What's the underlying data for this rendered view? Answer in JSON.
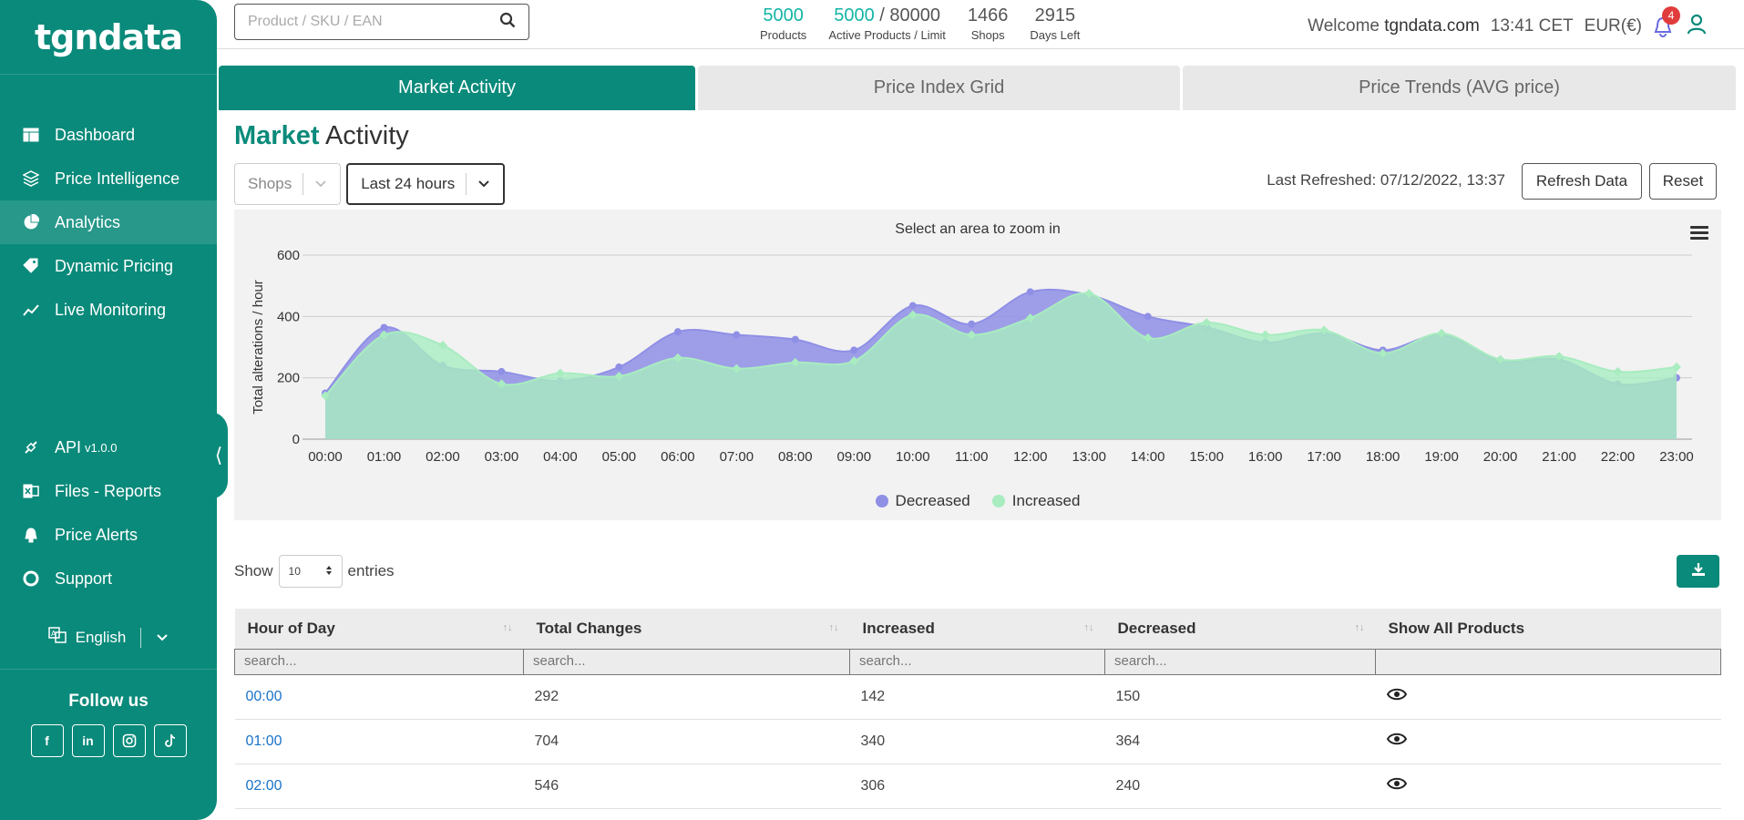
{
  "brand": {
    "logo": "tgndata"
  },
  "sidebar": {
    "top_items": [
      {
        "label": "Dashboard",
        "icon": "dashboard-icon"
      },
      {
        "label": "Price Intelligence",
        "icon": "layers-icon"
      },
      {
        "label": "Analytics",
        "icon": "pie-chart-icon",
        "active": true
      },
      {
        "label": "Dynamic Pricing",
        "icon": "tags-icon"
      },
      {
        "label": "Live Monitoring",
        "icon": "line-chart-icon"
      }
    ],
    "api": {
      "label": "API",
      "version": "v1.0.0"
    },
    "bottom_items": [
      {
        "label": "Files - Reports",
        "icon": "excel-file-icon"
      },
      {
        "label": "Price Alerts",
        "icon": "bell-alert-icon"
      },
      {
        "label": "Support",
        "icon": "lifebuoy-icon"
      }
    ],
    "language": "English",
    "follow_title": "Follow us",
    "socials": [
      "f",
      "in",
      "ig",
      "tt"
    ]
  },
  "header": {
    "search_placeholder": "Product / SKU / EAN",
    "stats": {
      "products": {
        "value": "5000",
        "label": "Products"
      },
      "active": {
        "value": "5000",
        "sep": " / ",
        "limit": "80000",
        "label": "Active Products / Limit"
      },
      "shops": {
        "value": "1466",
        "label": "Shops"
      },
      "days": {
        "value": "2915",
        "label": "Days Left"
      }
    },
    "welcome": "Welcome",
    "user": "tgndata.com",
    "time": "13:41 CET",
    "currency": "EUR(€)",
    "notifications": "4"
  },
  "tabs": [
    {
      "label": "Market Activity",
      "active": true
    },
    {
      "label": "Price Index Grid"
    },
    {
      "label": "Price Trends (AVG price)"
    }
  ],
  "page": {
    "title_accent": "Market",
    "title_rest": " Activity",
    "shops_filter": "Shops",
    "period_filter": "Last 24 hours",
    "last_refreshed": "Last Refreshed: 07/12/2022, 13:37",
    "refresh_button": "Refresh Data",
    "reset_button": "Reset"
  },
  "chart_data": {
    "type": "area",
    "hint": "Select an area to zoom in",
    "ylabel": "Total alterations / hour",
    "xlabel": "",
    "ylim": [
      0,
      600
    ],
    "yticks": [
      "0",
      "200",
      "400",
      "600"
    ],
    "categories": [
      "00:00",
      "01:00",
      "02:00",
      "03:00",
      "04:00",
      "05:00",
      "06:00",
      "07:00",
      "08:00",
      "09:00",
      "10:00",
      "11:00",
      "12:00",
      "13:00",
      "14:00",
      "15:00",
      "16:00",
      "17:00",
      "18:00",
      "19:00",
      "20:00",
      "21:00",
      "22:00",
      "23:00"
    ],
    "series": [
      {
        "name": "Decreased",
        "color": "#8f8fe6",
        "values": [
          150,
          364,
          240,
          220,
          190,
          235,
          350,
          340,
          325,
          290,
          435,
          375,
          480,
          470,
          400,
          365,
          315,
          345,
          290,
          340,
          255,
          260,
          180,
          200
        ]
      },
      {
        "name": "Increased",
        "color": "#a8ecc0",
        "values": [
          142,
          340,
          306,
          180,
          215,
          205,
          265,
          230,
          250,
          255,
          405,
          340,
          395,
          475,
          330,
          380,
          340,
          355,
          280,
          345,
          260,
          270,
          220,
          235
        ]
      }
    ],
    "grid": true,
    "legend_position": "bottom-center"
  },
  "table": {
    "show_label": "Show",
    "entries_value": "10",
    "entries_label": "entries",
    "columns": [
      "Hour of Day",
      "Total Changes",
      "Increased",
      "Decreased",
      "Show All Products"
    ],
    "search_placeholder": "search...",
    "rows": [
      {
        "hour": "00:00",
        "total": "292",
        "increased": "142",
        "decreased": "150"
      },
      {
        "hour": "01:00",
        "total": "704",
        "increased": "340",
        "decreased": "364"
      },
      {
        "hour": "02:00",
        "total": "546",
        "increased": "306",
        "decreased": "240"
      }
    ]
  }
}
